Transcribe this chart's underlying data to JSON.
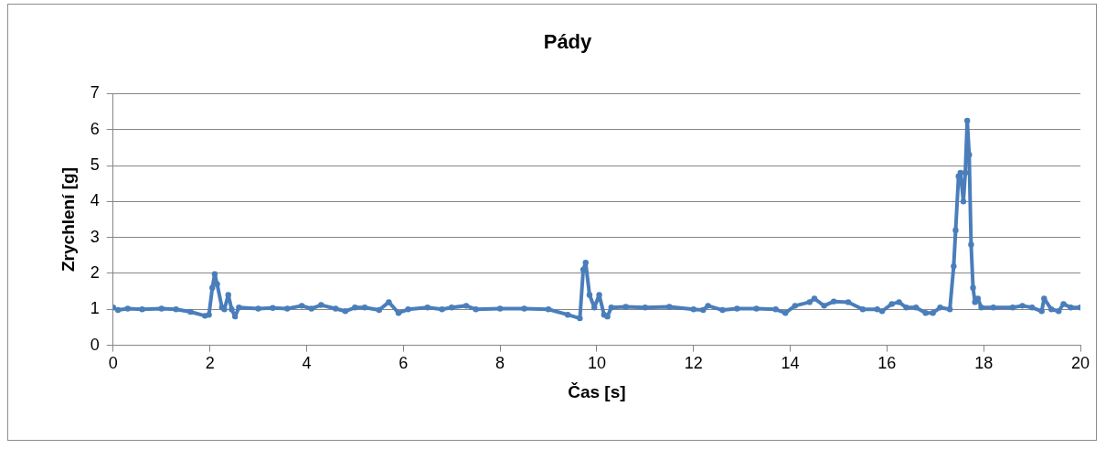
{
  "chart_data": {
    "type": "line",
    "title": "Pády",
    "xlabel": "Čas [s]",
    "ylabel": "Zrychlení [g]",
    "xlim": [
      0,
      20
    ],
    "xticks": [
      0,
      2,
      4,
      6,
      8,
      10,
      12,
      14,
      16,
      18,
      20
    ],
    "ylim": [
      0,
      7
    ],
    "yticks": [
      0,
      1,
      2,
      3,
      4,
      5,
      6,
      7
    ],
    "grid": "y",
    "legend": false,
    "marker": "circle",
    "line_style": "solid",
    "series": [
      {
        "color": "#4a7ebb",
        "x": [
          0,
          0.1,
          0.3,
          0.6,
          1.0,
          1.3,
          1.6,
          1.9,
          1.98,
          2.05,
          2.1,
          2.15,
          2.25,
          2.3,
          2.38,
          2.45,
          2.52,
          2.6,
          3.0,
          3.3,
          3.6,
          3.9,
          4.1,
          4.3,
          4.6,
          4.8,
          5.0,
          5.2,
          5.5,
          5.7,
          5.9,
          6.1,
          6.5,
          6.8,
          7.0,
          7.3,
          7.5,
          8.0,
          8.5,
          9.0,
          9.4,
          9.65,
          9.72,
          9.77,
          9.85,
          9.95,
          10.05,
          10.15,
          10.22,
          10.3,
          10.6,
          11.0,
          11.5,
          12.0,
          12.2,
          12.3,
          12.6,
          12.9,
          13.3,
          13.7,
          13.9,
          14.1,
          14.4,
          14.5,
          14.7,
          14.9,
          15.2,
          15.5,
          15.8,
          15.9,
          16.1,
          16.25,
          16.4,
          16.6,
          16.8,
          16.95,
          17.1,
          17.3,
          17.38,
          17.42,
          17.48,
          17.52,
          17.58,
          17.62,
          17.66,
          17.7,
          17.74,
          17.78,
          17.82,
          17.88,
          17.95,
          18.2,
          18.6,
          18.8,
          19.0,
          19.2,
          19.25,
          19.4,
          19.55,
          19.65,
          19.8,
          20.0
        ],
        "values": [
          1.05,
          0.98,
          1.02,
          1.0,
          1.02,
          1.0,
          0.93,
          0.82,
          0.85,
          1.6,
          1.98,
          1.7,
          1.05,
          1.0,
          1.4,
          1.0,
          0.8,
          1.05,
          1.02,
          1.04,
          1.02,
          1.1,
          1.02,
          1.12,
          1.02,
          0.95,
          1.05,
          1.05,
          0.98,
          1.2,
          0.9,
          1.0,
          1.05,
          1.0,
          1.05,
          1.1,
          1.0,
          1.02,
          1.02,
          1.0,
          0.85,
          0.75,
          2.1,
          2.3,
          1.4,
          1.05,
          1.4,
          0.85,
          0.8,
          1.05,
          1.07,
          1.05,
          1.07,
          1.0,
          0.98,
          1.1,
          0.98,
          1.02,
          1.02,
          1.0,
          0.9,
          1.1,
          1.2,
          1.3,
          1.1,
          1.22,
          1.2,
          1.0,
          1.0,
          0.95,
          1.15,
          1.2,
          1.05,
          1.05,
          0.9,
          0.9,
          1.05,
          1.0,
          2.2,
          3.2,
          4.7,
          4.8,
          4.0,
          4.8,
          6.25,
          5.3,
          2.8,
          1.6,
          1.2,
          1.3,
          1.05,
          1.05,
          1.05,
          1.1,
          1.05,
          0.95,
          1.3,
          1.0,
          0.95,
          1.15,
          1.05,
          1.05
        ]
      }
    ]
  }
}
